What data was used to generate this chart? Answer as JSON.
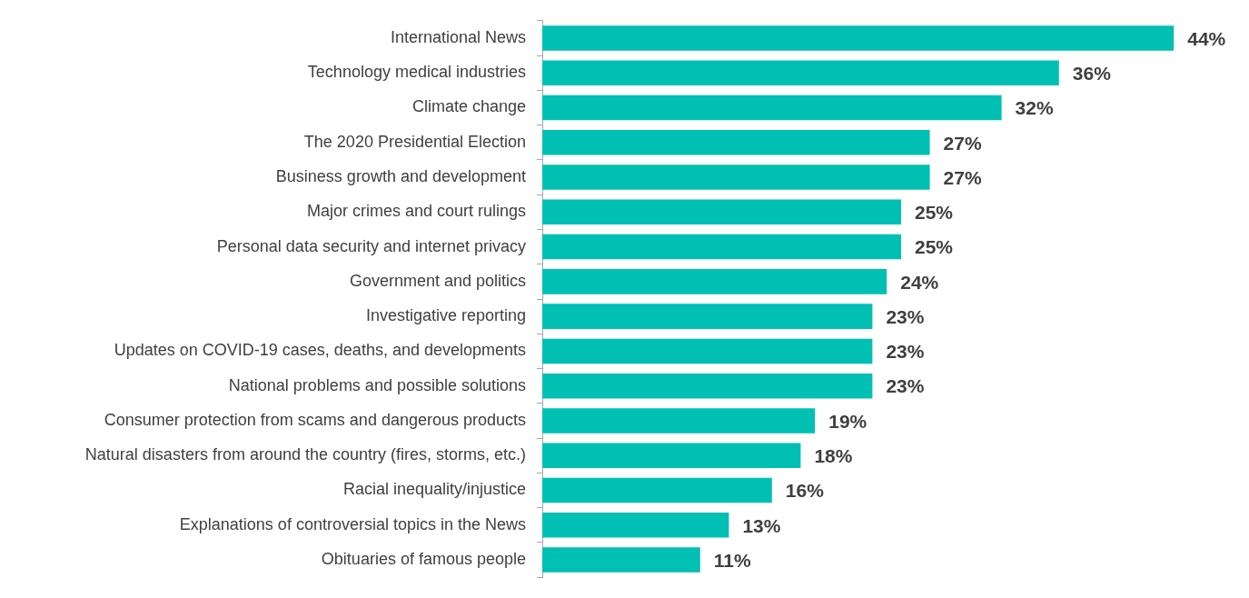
{
  "chart_data": {
    "type": "bar",
    "orientation": "horizontal",
    "categories": [
      "International News",
      "Technology medical industries",
      "Climate change",
      "The 2020 Presidential Election",
      "Business growth and development",
      "Major crimes and court rulings",
      "Personal data security and internet privacy",
      "Government and politics",
      "Investigative reporting",
      "Updates on COVID-19 cases, deaths, and developments",
      "National problems and possible solutions",
      "Consumer protection from scams and dangerous products",
      "Natural disasters from around the country (fires, storms, etc.)",
      "Racial inequality/injustice",
      "Explanations of controversial topics in the News",
      "Obituaries of famous people"
    ],
    "values": [
      44,
      36,
      32,
      27,
      27,
      25,
      25,
      24,
      23,
      23,
      23,
      19,
      18,
      16,
      13,
      11
    ],
    "value_labels": [
      "44%",
      "36%",
      "32%",
      "27%",
      "27%",
      "25%",
      "25%",
      "24%",
      "23%",
      "23%",
      "23%",
      "19%",
      "18%",
      "16%",
      "13%",
      "11%"
    ],
    "color": "#00bfb3",
    "tick_labels": "y"
  }
}
